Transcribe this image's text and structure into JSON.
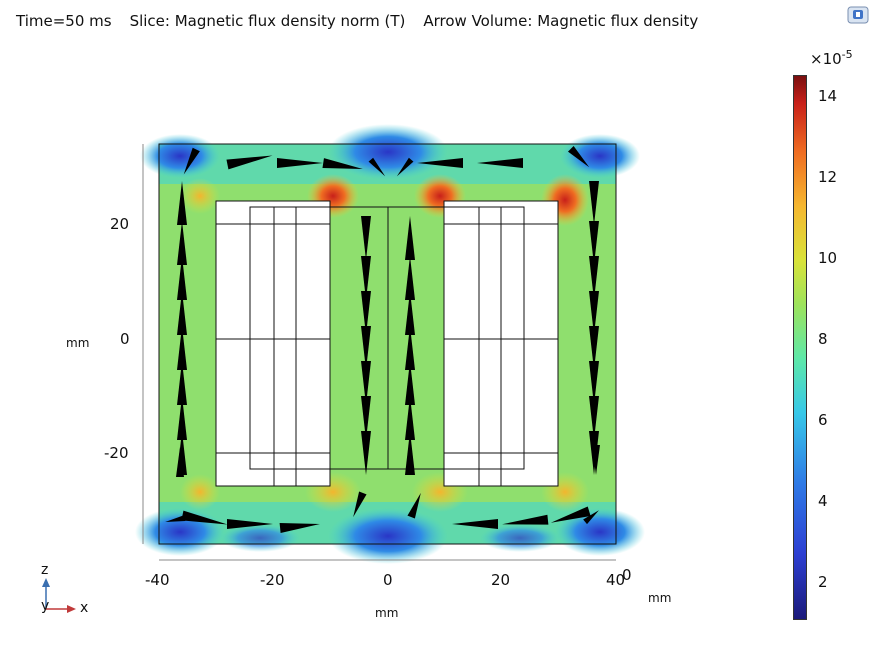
{
  "header": {
    "time_label": "Time=50 ms",
    "slice_label": "Slice: Magnetic flux density norm (T)",
    "arrow_label": "Arrow Volume: Magnetic flux density"
  },
  "icons": {
    "corner": "comsol-logo-icon"
  },
  "plot": {
    "x_axis": {
      "unit": "mm",
      "ticks": [
        "-40",
        "-20",
        "0",
        "20",
        "40"
      ]
    },
    "z_axis": {
      "unit": "mm",
      "ticks": [
        "20",
        "0",
        "-20"
      ]
    },
    "y_axis_extra_label": "0",
    "y_axis_extra_unit": "mm"
  },
  "colorbar": {
    "exponent_base": "×10",
    "exponent_power": "-5",
    "ticks": [
      "14",
      "12",
      "10",
      "8",
      "6",
      "4",
      "2"
    ],
    "colors": [
      "#1b1a7a",
      "#2d3fd2",
      "#2f7ae6",
      "#37c8e8",
      "#5ee8a8",
      "#9ee35b",
      "#d9e33a",
      "#f5b730",
      "#ef6d22",
      "#c8201a",
      "#7a0f0f"
    ]
  },
  "triad": {
    "z": "z",
    "y": "y",
    "x": "x"
  }
}
